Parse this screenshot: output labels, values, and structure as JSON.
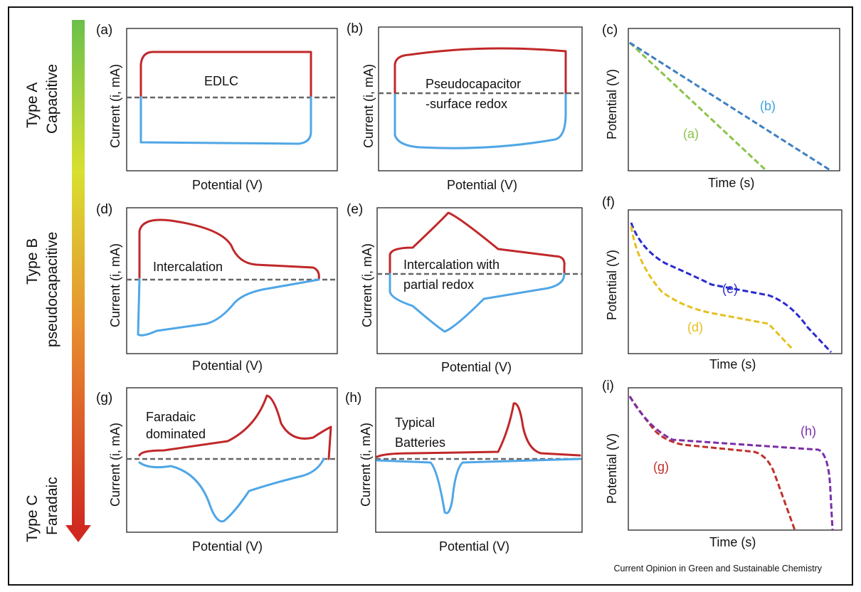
{
  "side_labels": {
    "type_a": [
      "Type A",
      "Capacitive"
    ],
    "type_b": [
      "Type B",
      "pseudocapacitive"
    ],
    "type_c": [
      "Type C",
      "Faradaic"
    ]
  },
  "panels": {
    "a": {
      "label": "(a)",
      "ylabel": "Current (i, mA)",
      "xlabel": "Potential (V)",
      "text": [
        "EDLC"
      ]
    },
    "b": {
      "label": "(b)",
      "ylabel": "Current (i, mA)",
      "xlabel": "Potential (V)",
      "text": [
        "Pseudocapacitor",
        "-surface redox"
      ]
    },
    "c": {
      "label": "(c)",
      "ylabel": "Potential (V)",
      "xlabel": "Time (s)",
      "curve_labels": [
        "(b)",
        "(a)"
      ]
    },
    "d": {
      "label": "(d)",
      "ylabel": "Current (i, mA)",
      "xlabel": "Potential (V)",
      "text": [
        "Intercalation"
      ]
    },
    "e": {
      "label": "(e)",
      "ylabel": "Current (i, mA)",
      "xlabel": "Potential (V)",
      "text": [
        "Intercalation with",
        "partial redox"
      ]
    },
    "f": {
      "label": "(f)",
      "ylabel": "Potential (V)",
      "xlabel": "Time (s)",
      "curve_labels": [
        "(e)",
        "(d)"
      ]
    },
    "g": {
      "label": "(g)",
      "ylabel": "Current (i, mA)",
      "xlabel": "Potential (V)",
      "text": [
        "Faradaic",
        "dominated"
      ]
    },
    "h": {
      "label": "(h)",
      "ylabel": "Current (i, mA)",
      "xlabel": "Potential (V)",
      "text": [
        "Typical",
        "Batteries"
      ]
    },
    "i": {
      "label": "(i)",
      "ylabel": "Potential (V)",
      "xlabel": "Time (s)",
      "curve_labels": [
        "(h)",
        "(g)"
      ]
    }
  },
  "colors": {
    "anodic": "#c0282a",
    "cathodic": "#4fa6e6",
    "a": "#8bc34a",
    "b": "#3d7fc0",
    "d": "#e6c020",
    "e": "#2a2ad0",
    "g": "#c0302a",
    "h": "#7b2fa8"
  },
  "footer": "Current Opinion in Green and Sustainable Chemistry"
}
